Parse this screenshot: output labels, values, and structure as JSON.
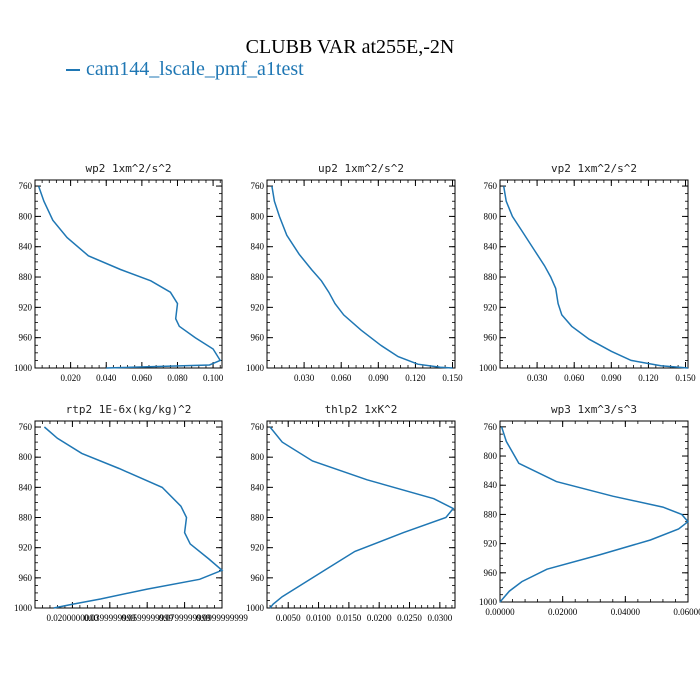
{
  "title": "CLUBB VAR at255E,-2N",
  "legend": {
    "label": "cam144_lscale_pmf_a1test",
    "color": "#1f77b4"
  },
  "chart_data": [
    {
      "type": "line",
      "title": "wp2  1xm^2/s^2",
      "xlabel": "",
      "ylabel": "",
      "xlim": [
        0,
        0.105
      ],
      "ylim": [
        1000,
        752
      ],
      "xticks": [
        0.02,
        0.04,
        0.06,
        0.08,
        0.1
      ],
      "xtick_labels": [
        "0.020",
        "0.040",
        "0.060",
        "0.080",
        "0.100"
      ],
      "yticks": [
        760,
        800,
        840,
        880,
        920,
        960,
        1000
      ],
      "series": [
        {
          "color": "#1f77b4",
          "x": [
            0.002,
            0.005,
            0.01,
            0.018,
            0.03,
            0.048,
            0.065,
            0.076,
            0.08,
            0.079,
            0.081,
            0.09,
            0.1,
            0.104,
            0.098,
            0.04
          ],
          "y": [
            760,
            780,
            805,
            828,
            852,
            870,
            885,
            900,
            915,
            935,
            945,
            960,
            975,
            990,
            996,
            1000
          ]
        }
      ]
    },
    {
      "type": "line",
      "title": "up2  1xm^2/s^2",
      "xlabel": "",
      "ylabel": "",
      "xlim": [
        0,
        0.152
      ],
      "ylim": [
        1000,
        752
      ],
      "xticks": [
        0.03,
        0.06,
        0.09,
        0.12,
        0.15
      ],
      "xtick_labels": [
        "0.030",
        "0.060",
        "0.090",
        "0.120",
        "0.150"
      ],
      "yticks": [
        760,
        800,
        840,
        880,
        920,
        960,
        1000
      ],
      "series": [
        {
          "color": "#1f77b4",
          "x": [
            0.004,
            0.006,
            0.01,
            0.016,
            0.026,
            0.036,
            0.044,
            0.05,
            0.055,
            0.062,
            0.076,
            0.092,
            0.106,
            0.122,
            0.14,
            0.15
          ],
          "y": [
            760,
            780,
            800,
            825,
            850,
            870,
            885,
            900,
            915,
            930,
            950,
            970,
            985,
            995,
            999,
            1000
          ]
        }
      ]
    },
    {
      "type": "line",
      "title": "vp2  1xm^2/s^2",
      "xlabel": "",
      "ylabel": "",
      "xlim": [
        0,
        0.152
      ],
      "ylim": [
        1000,
        752
      ],
      "xticks": [
        0.03,
        0.06,
        0.09,
        0.12,
        0.15
      ],
      "xtick_labels": [
        "0.030",
        "0.060",
        "0.090",
        "0.120",
        "0.150"
      ],
      "yticks": [
        760,
        800,
        840,
        880,
        920,
        960,
        1000
      ],
      "series": [
        {
          "color": "#1f77b4",
          "x": [
            0.003,
            0.005,
            0.01,
            0.018,
            0.028,
            0.036,
            0.041,
            0.045,
            0.047,
            0.05,
            0.058,
            0.072,
            0.09,
            0.106,
            0.13,
            0.152
          ],
          "y": [
            760,
            780,
            800,
            820,
            845,
            865,
            880,
            895,
            915,
            930,
            945,
            962,
            978,
            990,
            997,
            1000
          ]
        }
      ]
    },
    {
      "type": "line",
      "title": "rtp2  1E-6x(kg/kg)^2",
      "xlabel": "",
      "ylabel": "",
      "xlim": [
        0,
        0.1
      ],
      "ylim": [
        1000,
        752
      ],
      "xticks": [
        0.02,
        0.04,
        0.06,
        0.08,
        0.1
      ],
      "xtick_labels": [
        "0.0200000000",
        "0.0399999999",
        "0.0599999999",
        "0.0799999999",
        "0.0999999999"
      ],
      "yticks": [
        760,
        800,
        840,
        880,
        920,
        960,
        1000
      ],
      "series": [
        {
          "color": "#1f77b4",
          "x": [
            0.005,
            0.012,
            0.025,
            0.045,
            0.068,
            0.078,
            0.081,
            0.08,
            0.083,
            0.093,
            0.1,
            0.088,
            0.06,
            0.035,
            0.02,
            0.01
          ],
          "y": [
            760,
            775,
            795,
            815,
            840,
            865,
            880,
            900,
            915,
            935,
            950,
            962,
            975,
            988,
            995,
            1000
          ]
        }
      ]
    },
    {
      "type": "line",
      "title": "thlp2  1xK^2",
      "xlabel": "",
      "ylabel": "",
      "xlim": [
        0.0015,
        0.0325
      ],
      "ylim": [
        1000,
        752
      ],
      "xticks": [
        0.005,
        0.01,
        0.015,
        0.02,
        0.025,
        0.03
      ],
      "xtick_labels": [
        "0.0050",
        "0.0100",
        "0.0150",
        "0.0200",
        "0.0250",
        "0.0300"
      ],
      "yticks": [
        760,
        800,
        840,
        880,
        920,
        960,
        1000
      ],
      "series": [
        {
          "color": "#1f77b4",
          "x": [
            0.002,
            0.004,
            0.009,
            0.018,
            0.029,
            0.0322,
            0.031,
            0.024,
            0.016,
            0.011,
            0.007,
            0.004,
            0.0025,
            0.002
          ],
          "y": [
            760,
            780,
            805,
            830,
            855,
            868,
            880,
            900,
            925,
            950,
            970,
            985,
            995,
            1000
          ]
        }
      ]
    },
    {
      "type": "line",
      "title": "wp3  1xm^3/s^3",
      "xlabel": "",
      "ylabel": "",
      "xlim": [
        0,
        0.06
      ],
      "ylim": [
        1000,
        752
      ],
      "xticks": [
        0.0,
        0.02,
        0.04,
        0.06
      ],
      "xtick_labels": [
        "0.00000",
        "0.02000",
        "0.04000",
        "0.06000"
      ],
      "yticks": [
        760,
        800,
        840,
        880,
        920,
        960,
        1000
      ],
      "series": [
        {
          "color": "#1f77b4",
          "x": [
            0.0005,
            0.002,
            0.006,
            0.018,
            0.036,
            0.052,
            0.058,
            0.06,
            0.057,
            0.048,
            0.032,
            0.015,
            0.007,
            0.003,
            0.001,
            0.0
          ],
          "y": [
            760,
            780,
            810,
            835,
            855,
            870,
            880,
            890,
            900,
            915,
            935,
            955,
            972,
            985,
            995,
            1000
          ]
        }
      ]
    }
  ]
}
